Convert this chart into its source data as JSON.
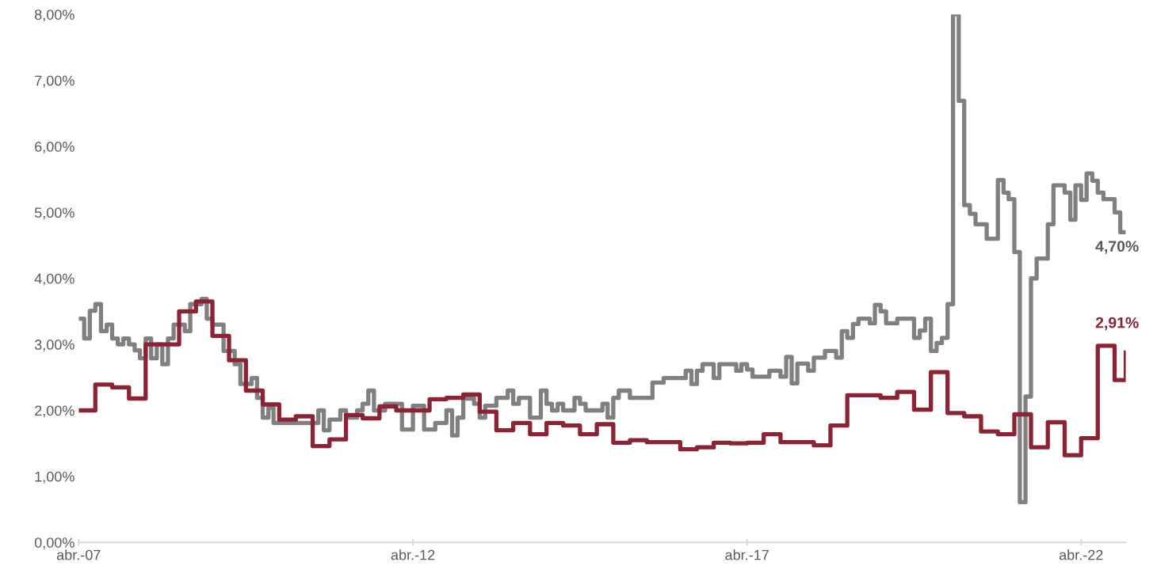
{
  "chart_data": {
    "type": "step",
    "series": [
      {
        "color": "#808080",
        "x": [
          "2007-04",
          "2007-05",
          "2007-06",
          "2007-07",
          "2007-08",
          "2007-09",
          "2007-10",
          "2007-11",
          "2007-12",
          "2008-01",
          "2008-02",
          "2008-03",
          "2008-04",
          "2008-05",
          "2008-06",
          "2008-07",
          "2008-08",
          "2008-09",
          "2008-11",
          "2008-12",
          "2009-02",
          "2009-03",
          "2009-04",
          "2009-06",
          "2009-08",
          "2009-09",
          "2009-11",
          "2009-12",
          "2010-01",
          "2010-02",
          "2010-03",
          "2010-11",
          "2010-12",
          "2011-01",
          "2011-03",
          "2011-04",
          "2011-06",
          "2011-07",
          "2011-08",
          "2011-09",
          "2011-11",
          "2012-02",
          "2012-04",
          "2012-06",
          "2012-08",
          "2012-10",
          "2012-11",
          "2012-12",
          "2013-01",
          "2013-03",
          "2013-04",
          "2013-05",
          "2013-07",
          "2013-09",
          "2013-10",
          "2013-11",
          "2014-01",
          "2014-03",
          "2014-04",
          "2014-05",
          "2014-06",
          "2014-07",
          "2014-09",
          "2014-10",
          "2014-11",
          "2015-02",
          "2015-03",
          "2015-04",
          "2015-05",
          "2015-07",
          "2015-11",
          "2016-01",
          "2016-05",
          "2016-06",
          "2016-07",
          "2016-08",
          "2016-10",
          "2016-11",
          "2017-02",
          "2017-03",
          "2017-04",
          "2017-05",
          "2017-08",
          "2017-10",
          "2017-11",
          "2017-12",
          "2018-01",
          "2018-03",
          "2018-04",
          "2018-06",
          "2018-08",
          "2018-09",
          "2018-10",
          "2018-11",
          "2018-12",
          "2019-02",
          "2019-03",
          "2019-04",
          "2019-05",
          "2019-07",
          "2019-10",
          "2019-11",
          "2019-12",
          "2020-01",
          "2020-02",
          "2020-03",
          "2020-04",
          "2020-05",
          "2020-06",
          "2020-07",
          "2020-08",
          "2020-09",
          "2020-11",
          "2021-01",
          "2021-02",
          "2021-03",
          "2021-04",
          "2021-05",
          "2021-06",
          "2021-07",
          "2021-08",
          "2021-10",
          "2021-11",
          "2022-01",
          "2022-02",
          "2022-03",
          "2022-04",
          "2022-05",
          "2022-06",
          "2022-07",
          "2022-08",
          "2022-10",
          "2022-11",
          "2022-12"
        ],
        "values": [
          3.39,
          3.09,
          3.51,
          3.61,
          3.2,
          3.3,
          3.09,
          3.0,
          3.09,
          3.0,
          2.91,
          2.79,
          3.09,
          2.79,
          3.0,
          2.7,
          3.09,
          3.3,
          3.2,
          3.61,
          3.69,
          3.39,
          3.3,
          2.9,
          2.7,
          2.4,
          2.49,
          2.19,
          1.89,
          2.04,
          1.81,
          2.0,
          1.7,
          1.86,
          2.0,
          1.89,
          2.0,
          2.1,
          2.3,
          2.0,
          2.1,
          1.71,
          2.07,
          1.71,
          1.81,
          2.0,
          1.62,
          1.89,
          2.18,
          2.1,
          1.89,
          2.07,
          2.19,
          2.3,
          2.1,
          2.19,
          1.89,
          2.3,
          2.1,
          2.0,
          2.1,
          2.0,
          2.19,
          2.1,
          2.0,
          2.1,
          1.89,
          2.19,
          2.3,
          2.19,
          2.42,
          2.49,
          2.6,
          2.4,
          2.6,
          2.7,
          2.49,
          2.7,
          2.6,
          2.7,
          2.62,
          2.51,
          2.6,
          2.51,
          2.81,
          2.41,
          2.71,
          2.6,
          2.8,
          2.9,
          2.8,
          3.2,
          3.1,
          3.31,
          3.39,
          3.32,
          3.6,
          3.5,
          3.32,
          3.39,
          3.1,
          3.21,
          3.39,
          2.9,
          3.02,
          3.1,
          3.61,
          8.0,
          6.69,
          5.11,
          4.98,
          4.82,
          4.6,
          5.49,
          5.3,
          5.2,
          4.4,
          0.61,
          2.21,
          4.0,
          4.3,
          4.82,
          5.41,
          5.3,
          4.89,
          5.41,
          5.19,
          5.59,
          5.48,
          5.3,
          5.2,
          5.0,
          4.7,
          4.7
        ]
      },
      {
        "color": "#8b2335",
        "x": [
          "2007-04",
          "2007-07",
          "2007-10",
          "2008-01",
          "2008-04",
          "2008-10",
          "2009-01",
          "2009-04",
          "2009-07",
          "2009-10",
          "2010-01",
          "2010-04",
          "2010-07",
          "2010-10",
          "2011-01",
          "2011-04",
          "2011-07",
          "2011-10",
          "2012-01",
          "2012-07",
          "2012-10",
          "2013-01",
          "2013-04",
          "2013-07",
          "2013-10",
          "2014-01",
          "2014-04",
          "2014-07",
          "2014-10",
          "2015-01",
          "2015-04",
          "2015-07",
          "2015-10",
          "2016-04",
          "2016-07",
          "2016-10",
          "2017-01",
          "2017-04",
          "2017-07",
          "2017-10",
          "2018-04",
          "2018-07",
          "2018-10",
          "2019-04",
          "2019-07",
          "2019-10",
          "2020-01",
          "2020-04",
          "2020-07",
          "2020-10",
          "2021-01",
          "2021-04",
          "2021-07",
          "2021-10",
          "2022-01",
          "2022-04",
          "2022-07",
          "2022-10",
          "2022-12"
        ],
        "values": [
          2.0,
          2.39,
          2.35,
          2.18,
          3.0,
          3.5,
          3.65,
          3.13,
          2.76,
          2.3,
          2.09,
          1.86,
          1.91,
          1.46,
          1.56,
          1.93,
          1.88,
          2.06,
          2.0,
          2.17,
          2.19,
          2.24,
          1.98,
          1.7,
          1.81,
          1.64,
          1.81,
          1.77,
          1.64,
          1.79,
          1.51,
          1.55,
          1.52,
          1.41,
          1.44,
          1.51,
          1.5,
          1.51,
          1.64,
          1.52,
          1.47,
          1.77,
          2.23,
          2.19,
          2.28,
          2.01,
          2.58,
          1.96,
          1.91,
          1.68,
          1.64,
          1.94,
          1.44,
          1.82,
          1.32,
          1.58,
          2.98,
          2.46,
          2.91
        ]
      }
    ],
    "xlim": [
      "2007-04",
      "2022-12"
    ],
    "xticks": [
      {
        "value": "2007-04",
        "label": "abr.-07"
      },
      {
        "value": "2012-04",
        "label": "abr.-12"
      },
      {
        "value": "2017-04",
        "label": "abr.-17"
      },
      {
        "value": "2022-04",
        "label": "abr.-22"
      }
    ],
    "ylim": [
      0,
      8
    ],
    "yticks": [
      {
        "value": 0,
        "label": "0,00%"
      },
      {
        "value": 1,
        "label": "1,00%"
      },
      {
        "value": 2,
        "label": "2,00%"
      },
      {
        "value": 3,
        "label": "3,00%"
      },
      {
        "value": 4,
        "label": "4,00%"
      },
      {
        "value": 5,
        "label": "5,00%"
      },
      {
        "value": 6,
        "label": "6,00%"
      },
      {
        "value": 7,
        "label": "7,00%"
      },
      {
        "value": 8,
        "label": "8,00%"
      }
    ],
    "annotations": [
      {
        "text": "4,70%",
        "x": "2022-12",
        "y": 4.7
      },
      {
        "text": "2,91%",
        "x": "2022-12",
        "y": 2.91
      }
    ],
    "grid": false,
    "line_style": "solid",
    "marker": "none"
  }
}
